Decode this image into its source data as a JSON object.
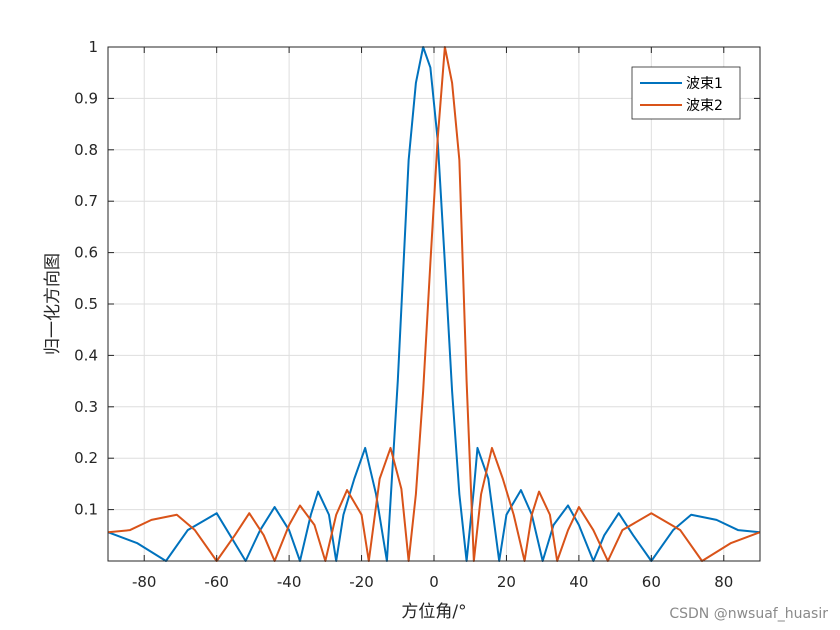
{
  "chart_data": {
    "type": "line",
    "xlabel": "方位角/°",
    "ylabel": "归一化方向图",
    "xlim": [
      -90,
      90
    ],
    "ylim": [
      0,
      1
    ],
    "xticks": [
      -80,
      -60,
      -40,
      -20,
      0,
      20,
      40,
      60,
      80
    ],
    "yticks": [
      0.1,
      0.2,
      0.3,
      0.4,
      0.5,
      0.6,
      0.7,
      0.8,
      0.9,
      1
    ],
    "grid": true,
    "legend_position": "top-right",
    "series": [
      {
        "name": "波束1",
        "color": "#0072BD",
        "x": [
          -90,
          -82,
          -74,
          -68,
          -60,
          -52,
          -48,
          -44,
          -40,
          -37,
          -34,
          -32,
          -29,
          -27,
          -25,
          -22,
          -19,
          -16,
          -13,
          -10,
          -7,
          -5,
          -3,
          -1,
          1,
          3,
          5,
          7,
          9,
          11,
          12,
          15,
          18,
          20,
          24,
          27,
          30,
          33,
          37,
          40,
          44,
          47,
          51,
          55,
          60,
          66,
          71,
          78,
          84,
          90
        ],
        "y": [
          0.056,
          0.035,
          0.0,
          0.06,
          0.093,
          0.0,
          0.06,
          0.105,
          0.06,
          0.0,
          0.09,
          0.135,
          0.09,
          0.0,
          0.09,
          0.16,
          0.22,
          0.13,
          0.0,
          0.35,
          0.78,
          0.93,
          1.0,
          0.96,
          0.82,
          0.58,
          0.33,
          0.13,
          0.0,
          0.14,
          0.22,
          0.16,
          0.0,
          0.09,
          0.138,
          0.09,
          0.0,
          0.07,
          0.108,
          0.07,
          0.0,
          0.05,
          0.093,
          0.05,
          0.0,
          0.06,
          0.09,
          0.08,
          0.06,
          0.056
        ]
      },
      {
        "name": "波束2",
        "color": "#D95319",
        "x": [
          -90,
          -84,
          -78,
          -71,
          -66,
          -60,
          -55,
          -51,
          -47,
          -44,
          -40,
          -37,
          -33,
          -30,
          -27,
          -24,
          -20,
          -18,
          -15,
          -12,
          -9,
          -7,
          -5,
          -3,
          -1,
          1,
          3,
          5,
          7,
          9,
          11,
          13,
          16,
          19,
          22,
          25,
          27,
          29,
          32,
          34,
          37,
          40,
          44,
          48,
          52,
          60,
          68,
          74,
          82,
          90
        ],
        "y": [
          0.056,
          0.06,
          0.08,
          0.09,
          0.06,
          0.0,
          0.05,
          0.093,
          0.05,
          0.0,
          0.07,
          0.108,
          0.07,
          0.0,
          0.09,
          0.138,
          0.09,
          0.0,
          0.16,
          0.22,
          0.14,
          0.0,
          0.13,
          0.33,
          0.58,
          0.82,
          1.0,
          0.93,
          0.78,
          0.35,
          0.0,
          0.13,
          0.22,
          0.16,
          0.09,
          0.0,
          0.09,
          0.135,
          0.09,
          0.0,
          0.06,
          0.105,
          0.06,
          0.0,
          0.06,
          0.093,
          0.06,
          0.0,
          0.035,
          0.056
        ]
      }
    ]
  },
  "watermark": "CSDN @nwsuaf_huasir"
}
